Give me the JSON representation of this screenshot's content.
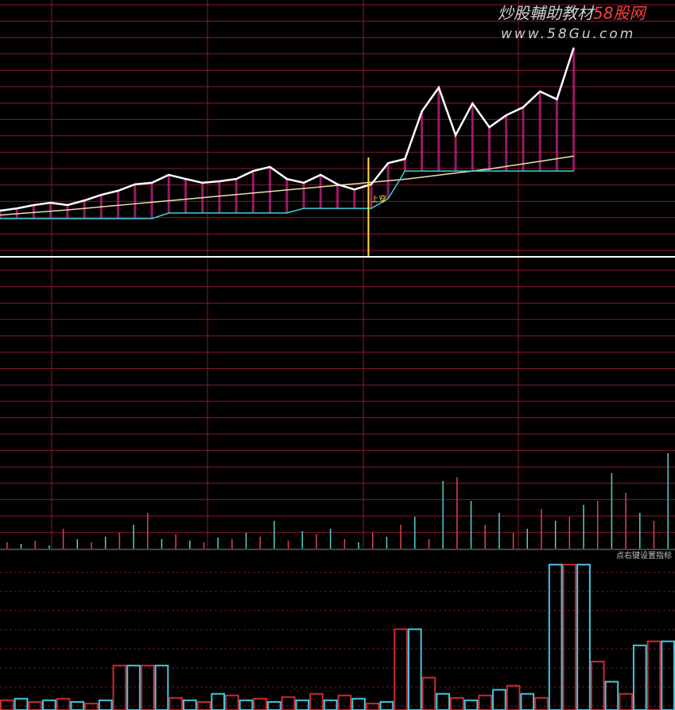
{
  "watermark": {
    "title": "炒股輔助教材",
    "brand": "58股网",
    "url": "www.58Gu.com"
  },
  "chart_data": [
    {
      "type": "line",
      "xlim": [
        0,
        240
      ],
      "ylim": [
        0,
        100
      ],
      "x": [
        0,
        6,
        12,
        18,
        24,
        30,
        36,
        42,
        48,
        54,
        60,
        66,
        72,
        78,
        84,
        90,
        96,
        102,
        108,
        114,
        120,
        126,
        132,
        138,
        144,
        150,
        156,
        162,
        168,
        174,
        180,
        186,
        192,
        198,
        204
      ],
      "series": [
        {
          "name": "price",
          "color": "#ffffff",
          "values": [
            17.7,
            18.6,
            19.9,
            20.8,
            19.9,
            21.7,
            23.9,
            25.5,
            28,
            28.6,
            31.7,
            30.1,
            28.6,
            29.2,
            30.1,
            33.2,
            34.8,
            30.1,
            28.6,
            31.7,
            28,
            26,
            28,
            36.3,
            37.9,
            56.5,
            65.8,
            47.2,
            59.6,
            50.3,
            55,
            58.1,
            64.3,
            61.2,
            81.4
          ]
        },
        {
          "name": "average",
          "color": "#40d0e0",
          "values": [
            14.6,
            14.6,
            14.6,
            14.6,
            14.6,
            14.6,
            14.6,
            14.6,
            14.6,
            14.6,
            16.8,
            16.8,
            16.8,
            16.8,
            16.8,
            16.8,
            16.8,
            16.8,
            18.6,
            18.6,
            18.6,
            18.6,
            18.6,
            22.4,
            33.2,
            33.2,
            33.2,
            33.2,
            33.2,
            33.2,
            33.2,
            33.2,
            33.2,
            33.2,
            33.2
          ]
        },
        {
          "name": "ma",
          "color": "#e8e0b0",
          "values": [
            16,
            16.5,
            17,
            17.5,
            18,
            18.6,
            19.2,
            19.8,
            20.4,
            21,
            21.6,
            22.2,
            22.8,
            23.4,
            24,
            24.6,
            25.2,
            25.8,
            26.4,
            27,
            27.6,
            28.2,
            28.8,
            29.4,
            30,
            30.8,
            31.6,
            32.4,
            33.2,
            34,
            35,
            36,
            37,
            38,
            39
          ]
        }
      ],
      "annotation": {
        "text": "上穿",
        "x": 131
      }
    },
    {
      "type": "bar",
      "xlim": [
        0,
        240
      ],
      "ylim": [
        0,
        360
      ],
      "color": "#e0405a",
      "color2": "#50d0d0",
      "x": [
        0,
        5,
        10,
        15,
        20,
        25,
        30,
        35,
        40,
        45,
        50,
        55,
        60,
        65,
        70,
        75,
        80,
        85,
        90,
        95,
        100,
        105,
        110,
        115,
        120,
        125,
        130,
        135,
        140,
        145,
        150,
        155,
        160,
        165,
        170,
        175,
        180,
        185,
        190,
        195,
        200,
        205,
        210,
        215,
        220,
        225,
        230,
        235
      ],
      "values": [
        8,
        6,
        10,
        4,
        25,
        12,
        8,
        15,
        20,
        30,
        45,
        12,
        18,
        10,
        8,
        14,
        12,
        20,
        15,
        35,
        10,
        22,
        18,
        25,
        12,
        8,
        20,
        15,
        30,
        40,
        12,
        85,
        90,
        60,
        30,
        45,
        20,
        25,
        50,
        35,
        40,
        55,
        60,
        95,
        70,
        45,
        35,
        120
      ]
    },
    {
      "type": "bar",
      "xlim": [
        0,
        240
      ],
      "ylim": [
        0,
        190
      ],
      "color": "#d02830",
      "color2": "#40c8e0",
      "annotation": "点右键设置指标",
      "x": [
        0,
        5,
        10,
        15,
        20,
        25,
        30,
        35,
        40,
        45,
        50,
        55,
        60,
        65,
        70,
        75,
        80,
        85,
        90,
        95,
        100,
        105,
        110,
        115,
        120,
        125,
        130,
        135,
        140,
        145,
        150,
        155,
        160,
        165,
        170,
        175,
        180,
        185,
        190,
        195,
        200,
        205,
        210,
        215,
        220,
        225,
        230,
        235
      ],
      "values": [
        12,
        14,
        10,
        12,
        14,
        10,
        8,
        12,
        55,
        55,
        55,
        55,
        15,
        12,
        10,
        20,
        18,
        12,
        14,
        10,
        16,
        12,
        20,
        12,
        18,
        14,
        8,
        10,
        100,
        100,
        40,
        20,
        15,
        12,
        18,
        25,
        30,
        20,
        15,
        180,
        180,
        180,
        60,
        35,
        20,
        80,
        85,
        85
      ]
    }
  ]
}
